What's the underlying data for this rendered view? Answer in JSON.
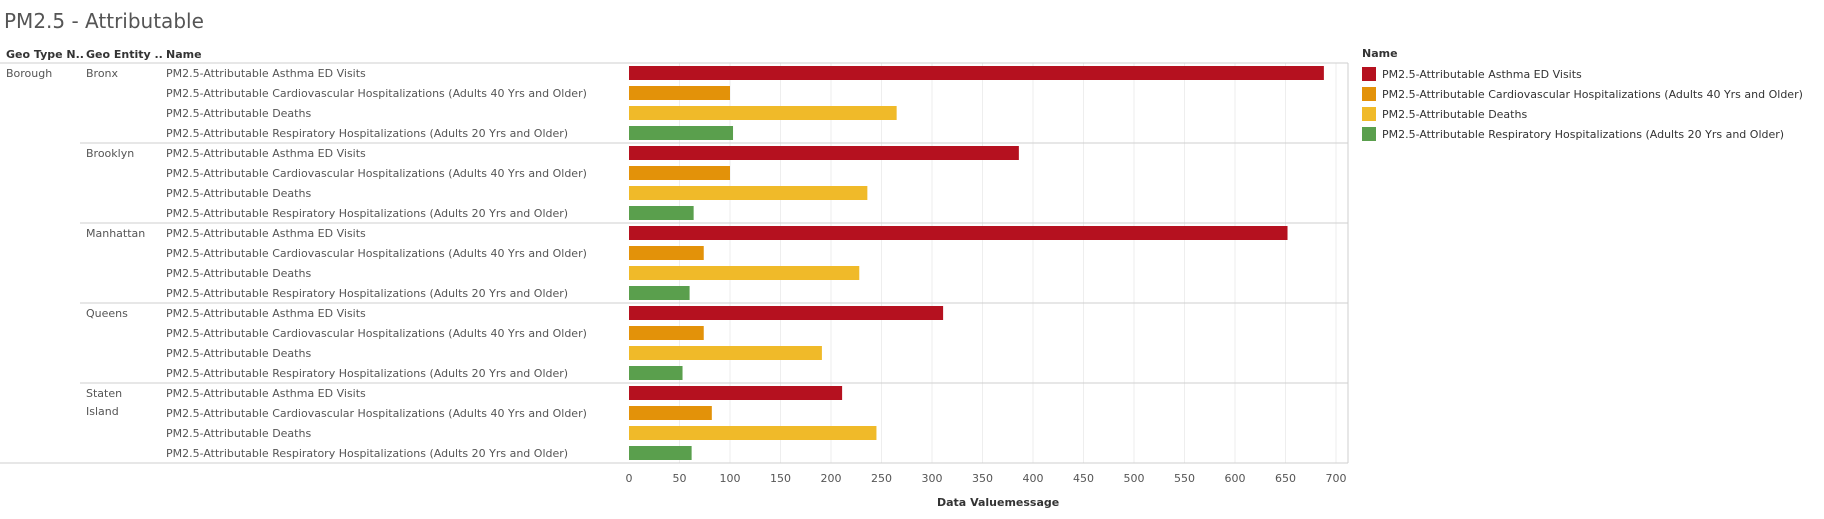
{
  "page": {
    "title": "PM2.5 - Attributable"
  },
  "table_headers": {
    "geo_type": "Geo Type N..",
    "geo_entity": "Geo Entity ..",
    "name": "Name"
  },
  "legend": {
    "title": "Name",
    "items": [
      {
        "label": "PM2.5-Attributable Asthma ED Visits",
        "color": "#b5111f"
      },
      {
        "label": "PM2.5-Attributable Cardiovascular Hospitalizations (Adults 40 Yrs and Older)",
        "color": "#e39209"
      },
      {
        "label": "PM2.5-Attributable Deaths",
        "color": "#f0ba29"
      },
      {
        "label": "PM2.5-Attributable Respiratory Hospitalizations (Adults 20 Yrs and Older)",
        "color": "#5a9f4d"
      }
    ]
  },
  "chart_data": {
    "type": "bar",
    "orientation": "horizontal",
    "title": "PM2.5 - Attributable",
    "xlabel": "Data Valuemessage",
    "xlim": [
      0,
      700
    ],
    "xticks": [
      0,
      50,
      100,
      150,
      200,
      250,
      300,
      350,
      400,
      450,
      500,
      550,
      600,
      650,
      700
    ],
    "grid": true,
    "legend_position": "right",
    "geo_type": "Borough",
    "categories": [
      "PM2.5-Attributable Asthma ED Visits",
      "PM2.5-Attributable Cardiovascular Hospitalizations (Adults 40 Yrs and Older)",
      "PM2.5-Attributable Deaths",
      "PM2.5-Attributable Respiratory Hospitalizations (Adults 20 Yrs and Older)"
    ],
    "colors": [
      "#b5111f",
      "#e39209",
      "#f0ba29",
      "#5a9f4d"
    ],
    "groups": [
      {
        "entity": "Bronx",
        "values": [
          688,
          100,
          265,
          103
        ]
      },
      {
        "entity": "Brooklyn",
        "values": [
          386,
          100,
          236,
          64
        ]
      },
      {
        "entity": "Manhattan",
        "values": [
          652,
          74,
          228,
          60
        ]
      },
      {
        "entity": "Queens",
        "values": [
          311,
          74,
          191,
          53
        ]
      },
      {
        "entity": "Staten Island",
        "values": [
          211,
          82,
          245,
          62
        ]
      }
    ]
  }
}
